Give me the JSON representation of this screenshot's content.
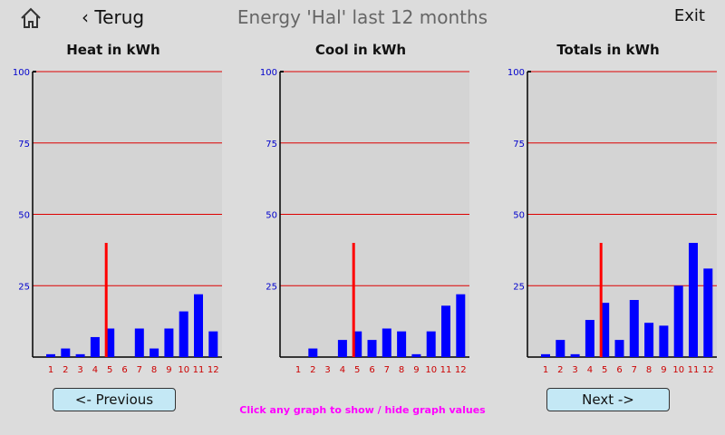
{
  "header": {
    "back_label": "Terug",
    "title": "Energy 'Hal' last 12 months",
    "exit_label": "Exit"
  },
  "footer": {
    "previous_label": "<- Previous",
    "next_label": "Next ->",
    "hint": "Click any graph to show / hide graph values"
  },
  "colors": {
    "bar": "#0000ff",
    "gridline": "#dd0000",
    "marker": "#ff0000",
    "plot_bg": "#d4d4d4",
    "y_tick_text": "#0000cc",
    "x_tick_text": "#cc0000",
    "hint": "#ff00ff",
    "button_bg": "#c4e8f5"
  },
  "icons": {
    "home": "home-icon",
    "back": "chevron-left-icon"
  },
  "chart_data": [
    {
      "type": "bar",
      "title": "Heat in kWh",
      "categories": [
        "1",
        "2",
        "3",
        "4",
        "5",
        "6",
        "7",
        "8",
        "9",
        "10",
        "11",
        "12"
      ],
      "values": [
        1,
        3,
        1,
        7,
        10,
        0,
        10,
        3,
        10,
        16,
        22,
        9
      ],
      "ylim": [
        0,
        100
      ],
      "yticks": [
        25,
        50,
        75,
        100
      ],
      "marker_month": 5,
      "marker_value": 40
    },
    {
      "type": "bar",
      "title": "Cool in kWh",
      "categories": [
        "1",
        "2",
        "3",
        "4",
        "5",
        "6",
        "7",
        "8",
        "9",
        "10",
        "11",
        "12"
      ],
      "values": [
        0,
        3,
        0,
        6,
        9,
        6,
        10,
        9,
        1,
        9,
        18,
        22
      ],
      "ylim": [
        0,
        100
      ],
      "yticks": [
        25,
        50,
        75,
        100
      ],
      "marker_month": 5,
      "marker_value": 40
    },
    {
      "type": "bar",
      "title": "Totals in kWh",
      "categories": [
        "1",
        "2",
        "3",
        "4",
        "5",
        "6",
        "7",
        "8",
        "9",
        "10",
        "11",
        "12"
      ],
      "values": [
        1,
        6,
        1,
        13,
        19,
        6,
        20,
        12,
        11,
        25,
        40,
        31
      ],
      "ylim": [
        0,
        100
      ],
      "yticks": [
        25,
        50,
        75,
        100
      ],
      "marker_month": 5,
      "marker_value": 40
    }
  ]
}
